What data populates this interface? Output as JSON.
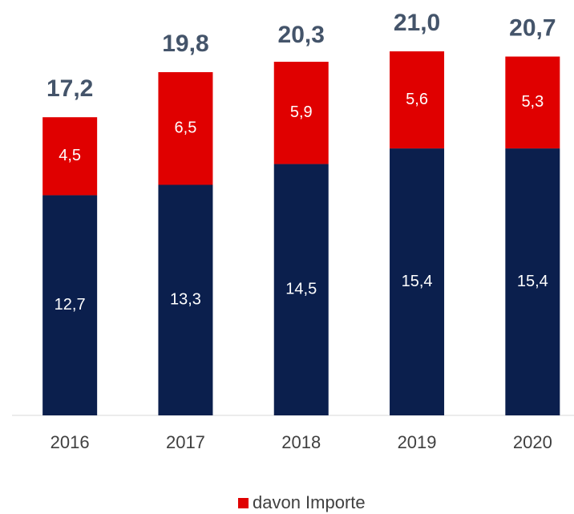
{
  "chart_data": {
    "type": "stacked_bar",
    "categories": [
      "2016",
      "2017",
      "2018",
      "2019",
      "2020"
    ],
    "series": [
      {
        "color": "#0b1f4d",
        "values": [
          12.7,
          13.3,
          14.5,
          15.4,
          15.4
        ],
        "value_labels": [
          "12,7",
          "13,3",
          "14,5",
          "15,4",
          "15,4"
        ]
      },
      {
        "name": "davon Importe",
        "color": "#e00000",
        "values": [
          4.5,
          6.5,
          5.9,
          5.6,
          5.3
        ],
        "value_labels": [
          "4,5",
          "6,5",
          "5,9",
          "5,6",
          "5,3"
        ]
      }
    ],
    "totals": {
      "values": [
        17.2,
        19.8,
        20.3,
        21.0,
        20.7
      ],
      "value_labels": [
        "17,2",
        "19,8",
        "20,3",
        "21,0",
        "20,7"
      ]
    },
    "ylim": [
      0,
      23.5
    ],
    "legend": "bottom"
  }
}
